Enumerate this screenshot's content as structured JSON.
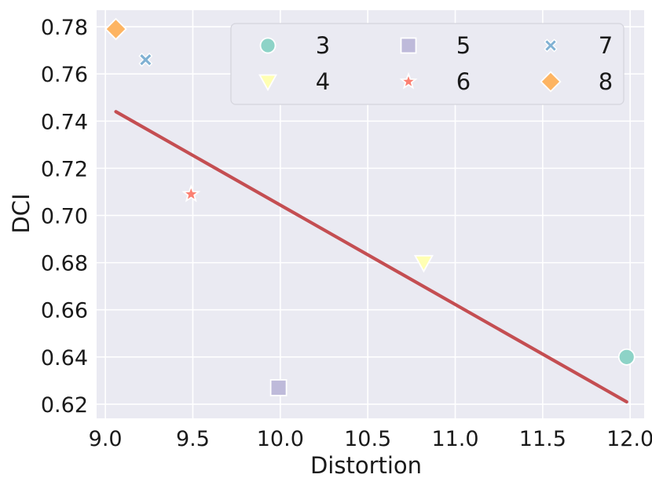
{
  "chart_data": {
    "type": "scatter",
    "xlabel": "Distortion",
    "ylabel": "DCI",
    "xlim": [
      8.95,
      12.08
    ],
    "ylim": [
      0.614,
      0.787
    ],
    "xticks": [
      "9.0",
      "9.5",
      "10.0",
      "10.5",
      "11.0",
      "11.5",
      "12.0"
    ],
    "yticks": [
      "0.62",
      "0.64",
      "0.66",
      "0.68",
      "0.70",
      "0.72",
      "0.74",
      "0.76",
      "0.78"
    ],
    "grid": true,
    "legend_position": "top-right",
    "series": [
      {
        "name": "3",
        "marker": "circle",
        "color": "#8dd3c7",
        "points": [
          {
            "x": 11.98,
            "y": 0.64
          }
        ]
      },
      {
        "name": "4",
        "marker": "triangle-down",
        "color": "#ffffb3",
        "points": [
          {
            "x": 10.82,
            "y": 0.68
          }
        ]
      },
      {
        "name": "5",
        "marker": "square",
        "color": "#bebada",
        "points": [
          {
            "x": 9.99,
            "y": 0.627
          }
        ]
      },
      {
        "name": "6",
        "marker": "star",
        "color": "#fb8072",
        "points": [
          {
            "x": 9.49,
            "y": 0.709
          }
        ]
      },
      {
        "name": "7",
        "marker": "x",
        "color": "#80b1d3",
        "points": [
          {
            "x": 9.23,
            "y": 0.766
          }
        ]
      },
      {
        "name": "8",
        "marker": "diamond",
        "color": "#fdb462",
        "points": [
          {
            "x": 9.06,
            "y": 0.779
          }
        ]
      }
    ],
    "trend_line": {
      "color": "#c44e52",
      "x": [
        9.06,
        11.98
      ],
      "y": [
        0.744,
        0.621
      ]
    }
  }
}
